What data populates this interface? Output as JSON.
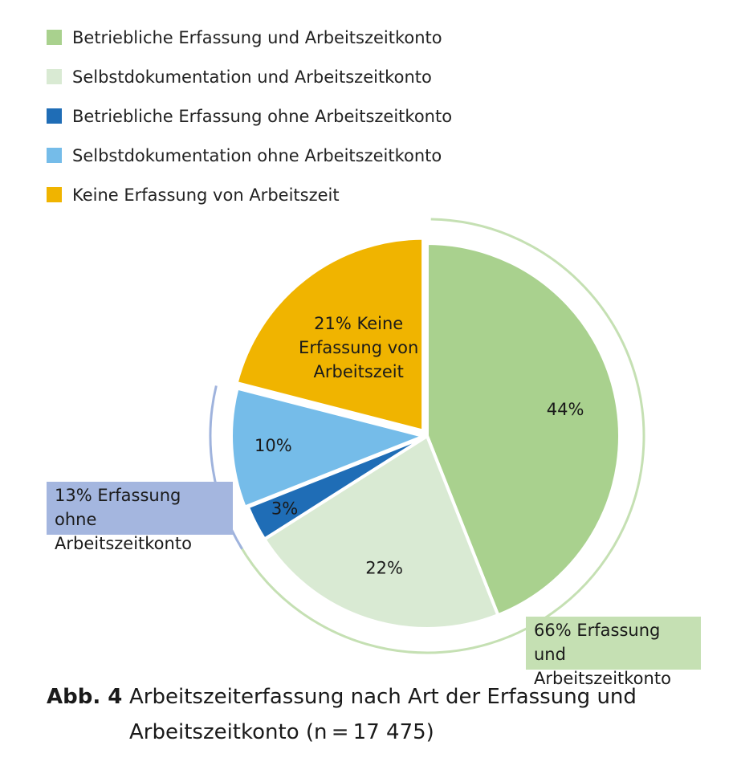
{
  "legend": [
    {
      "label": "Betriebliche Erfassung und Arbeitszeitkonto",
      "color": "#a9d18e"
    },
    {
      "label": "Selbstdokumentation und Arbeitszeitkonto",
      "color": "#d9ead3"
    },
    {
      "label": "Betriebliche Erfassung ohne Arbeitszeitkonto",
      "color": "#1f6db6"
    },
    {
      "label": "Selbstdokumentation ohne Arbeitszeitkonto",
      "color": "#75bce9"
    },
    {
      "label": "Keine Erfassung von Arbeitszeit",
      "color": "#f0b400"
    }
  ],
  "chart_data": {
    "type": "pie",
    "slices": [
      {
        "name": "Betriebliche Erfassung und Arbeitszeitkonto",
        "value": 44,
        "label": "44%",
        "color": "#a9d18e"
      },
      {
        "name": "Selbstdokumentation und Arbeitszeitkonto",
        "value": 22,
        "label": "22%",
        "color": "#d9ead3"
      },
      {
        "name": "Betriebliche Erfassung ohne Arbeitszeitkonto",
        "value": 3,
        "label": "3%",
        "color": "#1f6db6"
      },
      {
        "name": "Selbstdokumentation ohne Arbeitszeitkonto",
        "value": 10,
        "label": "10%",
        "color": "#75bce9"
      },
      {
        "name": "Keine Erfassung von Arbeitszeit",
        "value": 21,
        "label": "21% Keine Erfassung von Arbeitszeit",
        "color": "#f0b400"
      }
    ],
    "groups": [
      {
        "label": "66% Erfassung und Arbeitszeitkonto",
        "value": 66,
        "color": "#a9d18e",
        "bg": "#c5e0b3"
      },
      {
        "label": "13% Erfassung ohne Arbeitszeitkonto",
        "value": 13,
        "color": "#9fb3dd",
        "bg": "#a4b6df"
      }
    ]
  },
  "caption": {
    "label": "Abb. 4",
    "text": "Arbeitszeiterfassung nach Art der Erfassung und Arbeitszeitkonto (n = 17 475)"
  }
}
